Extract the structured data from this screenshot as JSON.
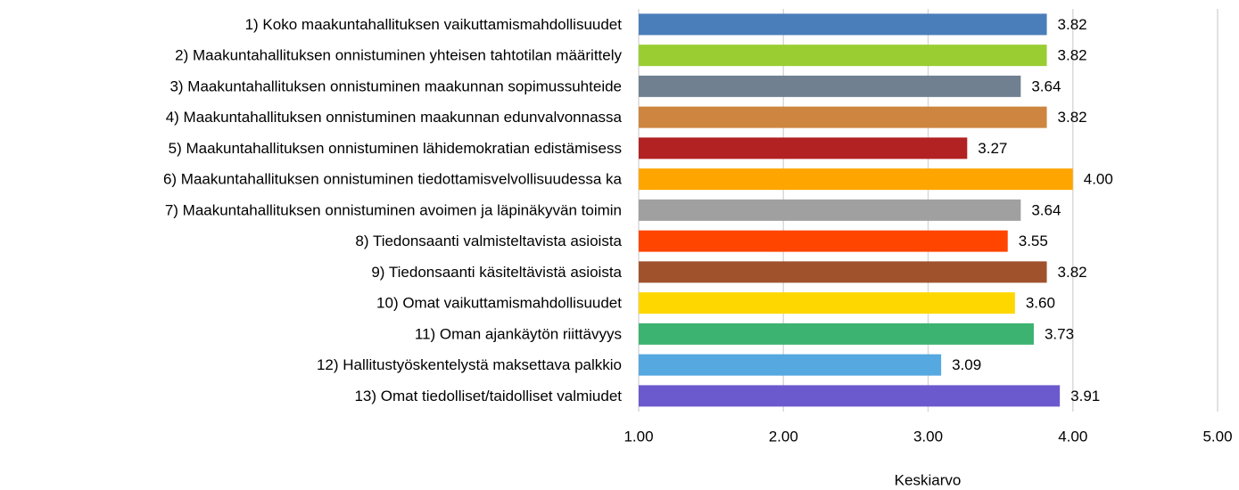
{
  "chart_data": {
    "type": "barh",
    "categories": [
      "1) Koko maakuntahallituksen vaikuttamismahdollisuudet",
      "2) Maakuntahallituksen onnistuminen yhteisen tahtotilan määrittely",
      "3) Maakuntahallituksen onnistuminen maakunnan sopimussuhteide",
      "4) Maakuntahallituksen onnistuminen maakunnan edunvalvonnassa",
      "5) Maakuntahallituksen onnistuminen lähidemokratian edistämisess",
      "6) Maakuntahallituksen onnistuminen tiedottamisvelvollisuudessa ka",
      "7) Maakuntahallituksen onnistuminen avoimen ja läpinäkyvän toimin",
      "8) Tiedonsaanti valmisteltavista asioista",
      "9) Tiedonsaanti käsiteltävistä asioista",
      "10) Omat vaikuttamismahdollisuudet",
      "11) Oman ajankäytön riittävyys",
      "12) Hallitustyöskentelystä maksettava palkkio",
      "13) Omat tiedolliset/taidolliset valmiudet"
    ],
    "values": [
      3.82,
      3.82,
      3.64,
      3.82,
      3.27,
      4.0,
      3.64,
      3.55,
      3.82,
      3.6,
      3.73,
      3.09,
      3.91
    ],
    "value_labels": [
      "3.82",
      "3.82",
      "3.64",
      "3.82",
      "3.27",
      "4.00",
      "3.64",
      "3.55",
      "3.82",
      "3.60",
      "3.73",
      "3.09",
      "3.91"
    ],
    "colors": [
      "#4a7ebb",
      "#9acd32",
      "#708090",
      "#cd853f",
      "#b22222",
      "#ffa500",
      "#a0a0a0",
      "#ff4500",
      "#a0522d",
      "#ffd700",
      "#3cb371",
      "#56a8e0",
      "#6a5acd"
    ],
    "xlabel": "Keskiarvo",
    "xlim": [
      1,
      5
    ],
    "xticks": [
      {
        "value": 1,
        "label": "1.00"
      },
      {
        "value": 2,
        "label": "2.00"
      },
      {
        "value": 3,
        "label": "3.00"
      },
      {
        "value": 4,
        "label": "4.00"
      },
      {
        "value": 5,
        "label": "5.00"
      }
    ],
    "grid": true
  }
}
